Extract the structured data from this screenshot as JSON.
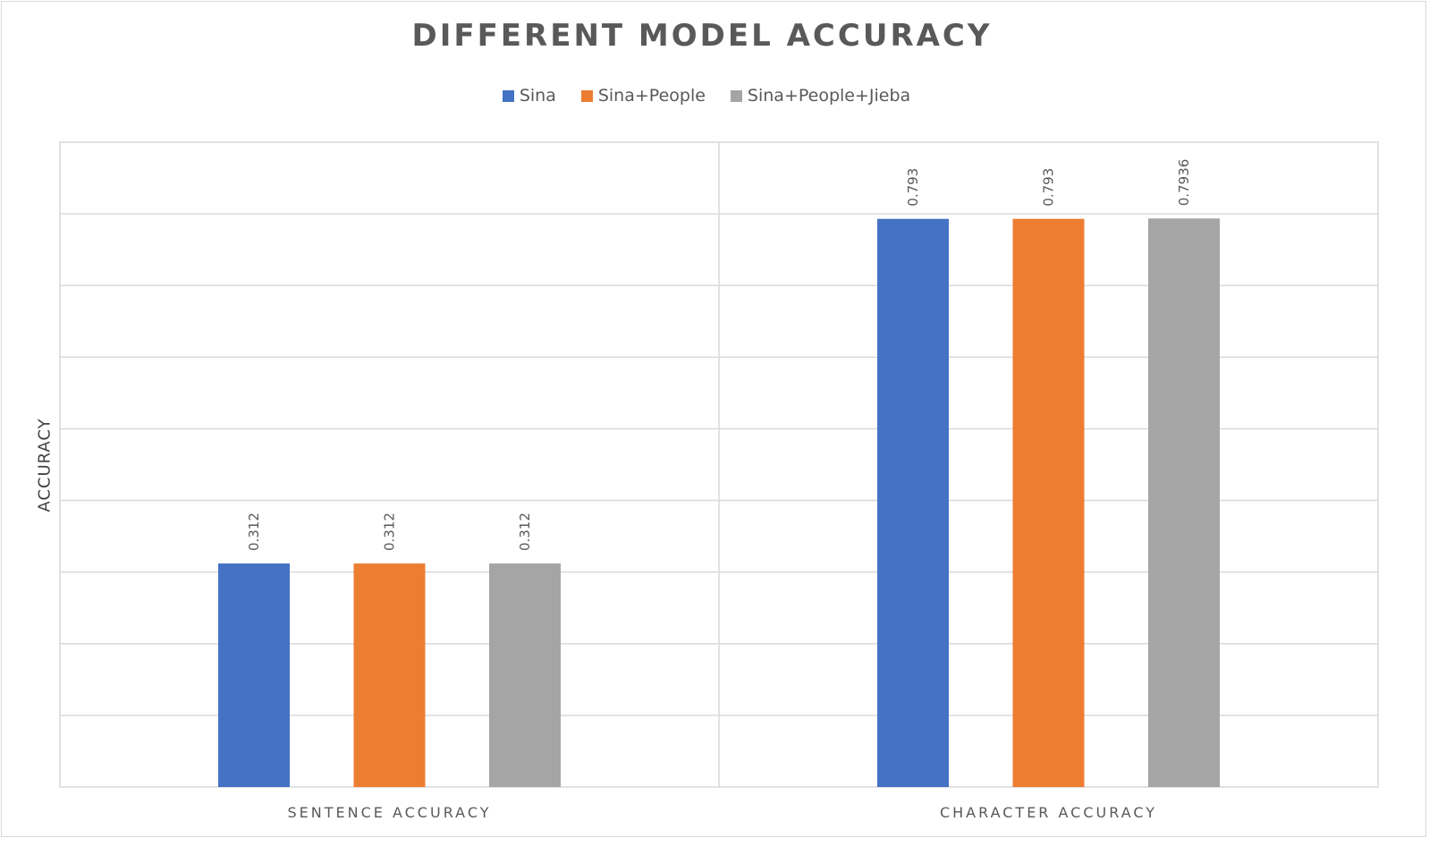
{
  "chart_data": {
    "type": "bar",
    "title": "DIFFERENT MODEL ACCURACY",
    "ylabel": "ACCURACY",
    "xlabel": "",
    "categories": [
      "SENTENCE ACCURACY",
      "CHARACTER ACCURACY"
    ],
    "series": [
      {
        "name": "Sina",
        "color": "#4472C4",
        "values": [
          0.312,
          0.793
        ],
        "labels": [
          "0.312",
          "0.793"
        ]
      },
      {
        "name": "Sina+People",
        "color": "#ED7D31",
        "values": [
          0.312,
          0.793
        ],
        "labels": [
          "0.312",
          "0.793"
        ]
      },
      {
        "name": "Sina+People+Jieba",
        "color": "#A5A5A5",
        "values": [
          0.312,
          0.7936
        ],
        "labels": [
          "0.312",
          "0.7936"
        ]
      }
    ],
    "ylim": [
      0,
      0.9
    ],
    "grid": true,
    "legend_position": "top"
  }
}
